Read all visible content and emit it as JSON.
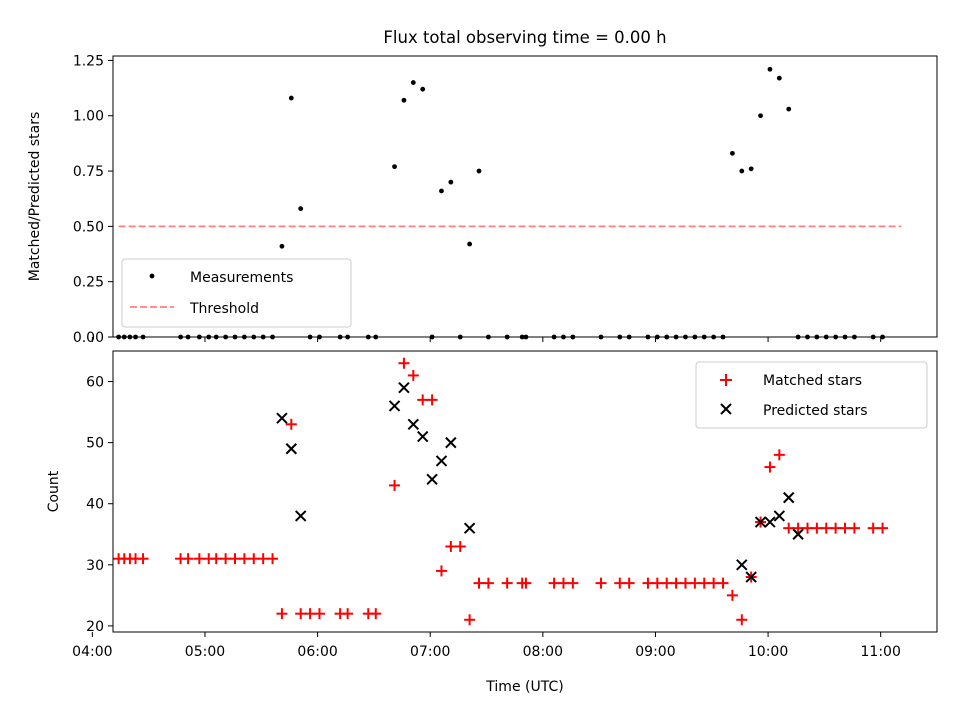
{
  "figure": {
    "title": "Flux total observing time = 0.00 h"
  },
  "chart_data": [
    {
      "type": "scatter",
      "name": "ratio-panel",
      "ylabel": "Matched/Predicted stars",
      "xlim": [
        "04:11",
        "11:30"
      ],
      "ylim": [
        0,
        1.27
      ],
      "yticks": [
        "0.00",
        "0.25",
        "0.50",
        "0.75",
        "1.00",
        "1.25"
      ],
      "legend_position": "lower-left",
      "series": [
        {
          "name": "Measurements",
          "color": "#000000",
          "marker": "dot",
          "x": [
            "04:14",
            "04:17",
            "04:20",
            "04:23",
            "04:27",
            "04:47",
            "04:51",
            "04:57",
            "05:02",
            "05:06",
            "05:11",
            "05:16",
            "05:21",
            "05:26",
            "05:31",
            "05:36",
            "05:41",
            "05:46",
            "05:51",
            "05:56",
            "06:01",
            "06:12",
            "06:16",
            "06:27",
            "06:31",
            "06:41",
            "06:46",
            "06:51",
            "06:56",
            "07:01",
            "07:06",
            "07:11",
            "07:16",
            "07:21",
            "07:26",
            "07:31",
            "07:41",
            "07:49",
            "07:51",
            "08:06",
            "08:11",
            "08:16",
            "08:31",
            "08:41",
            "08:46",
            "08:56",
            "09:01",
            "09:06",
            "09:11",
            "09:16",
            "09:21",
            "09:26",
            "09:31",
            "09:36",
            "09:41",
            "09:46",
            "09:51",
            "09:56",
            "10:01",
            "10:06",
            "10:11",
            "10:16",
            "10:21",
            "10:26",
            "10:31",
            "10:36",
            "10:41",
            "10:46",
            "10:56",
            "11:01"
          ],
          "y": [
            0,
            0,
            0,
            0,
            0,
            0,
            0,
            0,
            0,
            0,
            0,
            0,
            0,
            0,
            0,
            0,
            0.41,
            1.08,
            0.58,
            0,
            0,
            0,
            0,
            0,
            0,
            0.77,
            1.07,
            1.15,
            1.12,
            0,
            0.66,
            0.7,
            0,
            0.42,
            0.75,
            0,
            0,
            0,
            0,
            0,
            0,
            0,
            0,
            0,
            0,
            0,
            0,
            0,
            0,
            0,
            0,
            0,
            0,
            0,
            0.83,
            0.75,
            0.76,
            1.0,
            1.21,
            1.17,
            1.03,
            0,
            0,
            0,
            0,
            0,
            0,
            0,
            0,
            0
          ]
        },
        {
          "name": "Threshold",
          "color": "#ff7f7f",
          "style": "dashed",
          "x": [
            "04:14",
            "11:11"
          ],
          "y": [
            0.5,
            0.5
          ]
        }
      ]
    },
    {
      "type": "scatter",
      "name": "count-panel",
      "xlabel": "Time (UTC)",
      "ylabel": "Count",
      "xlim": [
        "04:11",
        "11:30"
      ],
      "ylim": [
        19,
        65
      ],
      "xticks": [
        "04:00",
        "05:00",
        "06:00",
        "07:00",
        "08:00",
        "09:00",
        "10:00",
        "11:00"
      ],
      "yticks": [
        "20",
        "30",
        "40",
        "50",
        "60"
      ],
      "legend_position": "upper-right",
      "series": [
        {
          "name": "Matched stars",
          "color": "#ff0000",
          "marker": "plus",
          "x": [
            "04:14",
            "04:17",
            "04:20",
            "04:23",
            "04:27",
            "04:47",
            "04:51",
            "04:57",
            "05:02",
            "05:06",
            "05:11",
            "05:16",
            "05:21",
            "05:26",
            "05:31",
            "05:36",
            "05:41",
            "05:46",
            "05:51",
            "05:56",
            "06:01",
            "06:12",
            "06:16",
            "06:27",
            "06:31",
            "06:41",
            "06:46",
            "06:51",
            "06:56",
            "07:01",
            "07:06",
            "07:11",
            "07:16",
            "07:21",
            "07:26",
            "07:31",
            "07:41",
            "07:49",
            "07:51",
            "08:06",
            "08:11",
            "08:16",
            "08:31",
            "08:41",
            "08:46",
            "08:56",
            "09:01",
            "09:06",
            "09:11",
            "09:16",
            "09:21",
            "09:26",
            "09:31",
            "09:36",
            "09:41",
            "09:46",
            "09:51",
            "09:56",
            "10:01",
            "10:06",
            "10:11",
            "10:16",
            "10:21",
            "10:26",
            "10:31",
            "10:36",
            "10:41",
            "10:46",
            "10:56",
            "11:01"
          ],
          "y": [
            31,
            31,
            31,
            31,
            31,
            31,
            31,
            31,
            31,
            31,
            31,
            31,
            31,
            31,
            31,
            31,
            22,
            53,
            22,
            22,
            22,
            22,
            22,
            22,
            22,
            43,
            63,
            61,
            57,
            57,
            29,
            33,
            33,
            21,
            27,
            27,
            27,
            27,
            27,
            27,
            27,
            27,
            27,
            27,
            27,
            27,
            27,
            27,
            27,
            27,
            27,
            27,
            27,
            27,
            25,
            21,
            28,
            37,
            46,
            48,
            36,
            36,
            36,
            36,
            36,
            36,
            36,
            36,
            36,
            36
          ]
        },
        {
          "name": "Predicted stars",
          "color": "#000000",
          "marker": "x",
          "x": [
            "05:41",
            "05:46",
            "05:51",
            "06:41",
            "06:46",
            "06:51",
            "06:56",
            "07:01",
            "07:06",
            "07:11",
            "07:21",
            "09:46",
            "09:51",
            "09:56",
            "10:01",
            "10:06",
            "10:11",
            "10:16"
          ],
          "y": [
            54,
            49,
            38,
            56,
            59,
            53,
            51,
            44,
            47,
            50,
            36,
            30,
            28,
            37,
            37,
            38,
            41,
            35
          ]
        }
      ]
    }
  ]
}
